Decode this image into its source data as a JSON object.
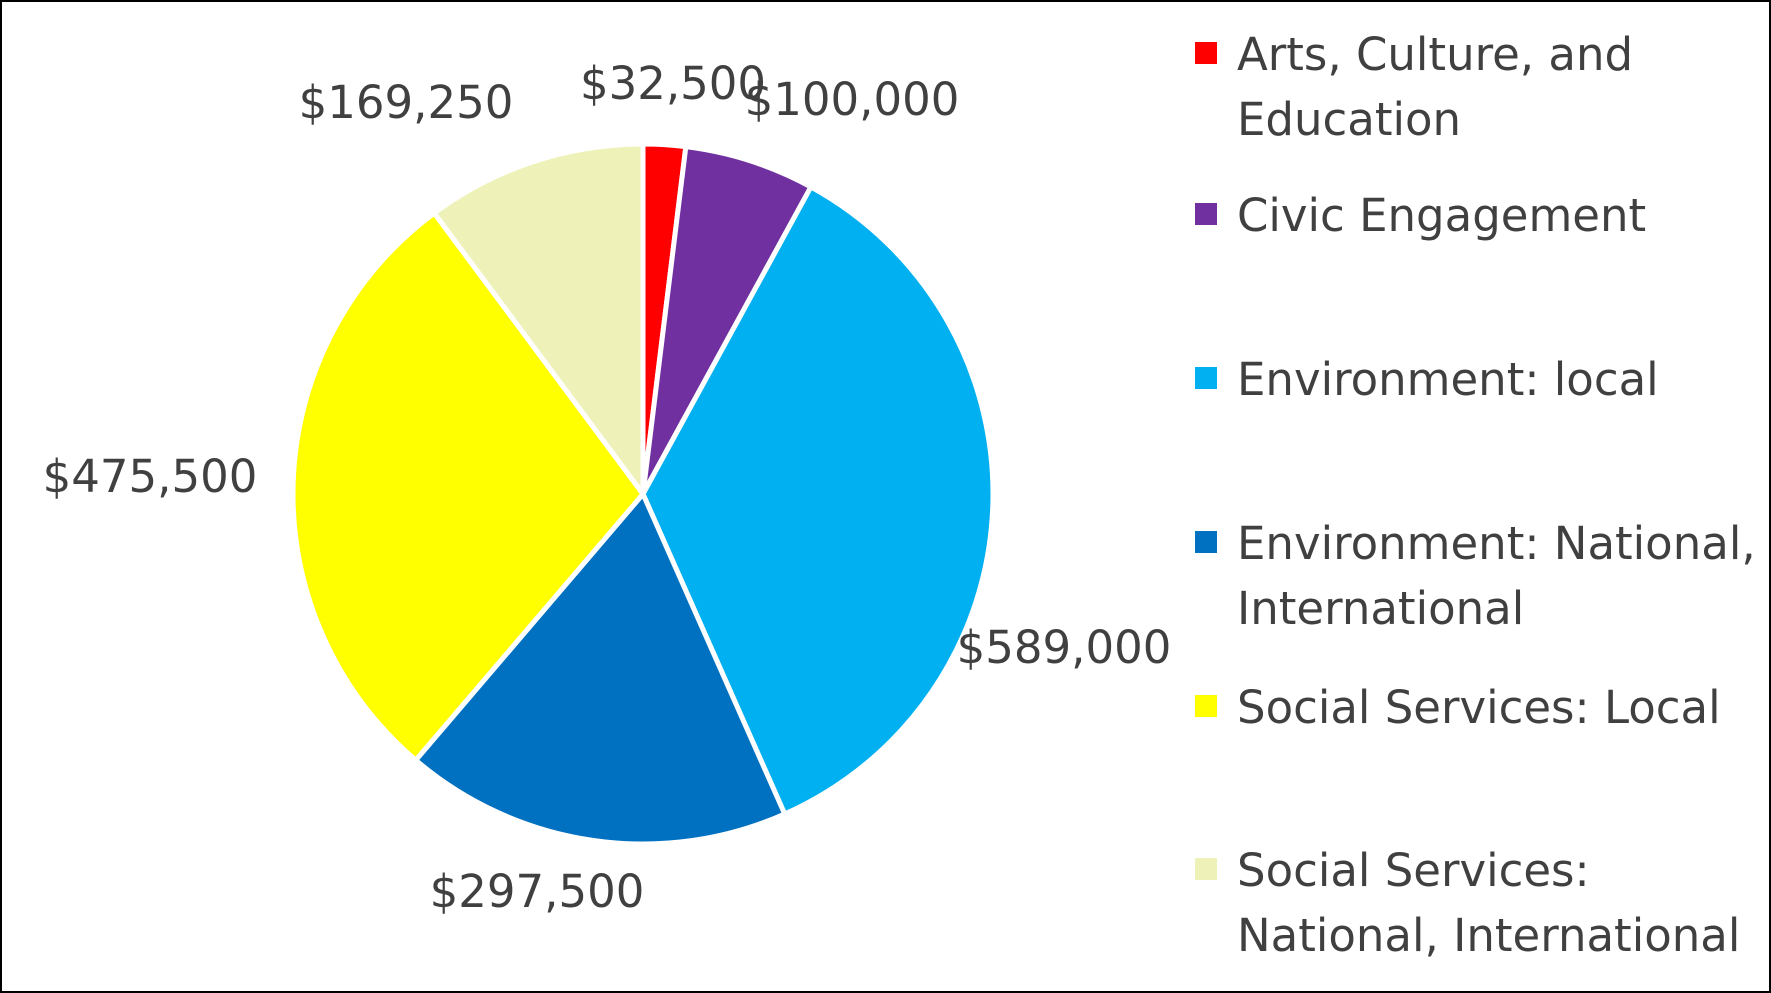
{
  "chart_data": {
    "type": "pie",
    "title": "",
    "start_angle_deg": 0,
    "direction": "clockwise",
    "legend_position": "right",
    "slices": [
      {
        "label": "Arts, Culture, and Education",
        "value": 32500,
        "value_label": "$32,500",
        "color": "#FF0000"
      },
      {
        "label": "Civic Engagement",
        "value": 100000,
        "value_label": "$100,000",
        "color": "#7030A0"
      },
      {
        "label": "Environment: local",
        "value": 589000,
        "value_label": "$589,000",
        "color": "#00B0F0"
      },
      {
        "label": "Environment: National, International",
        "value": 297500,
        "value_label": "$297,500",
        "color": "#0070C0"
      },
      {
        "label": "Social Services: Local",
        "value": 475500,
        "value_label": "$475,500",
        "color": "#FFFF00"
      },
      {
        "label": "Social Services: National, International",
        "value": 169250,
        "value_label": "$169,250",
        "color": "#EEF2B8"
      }
    ]
  }
}
